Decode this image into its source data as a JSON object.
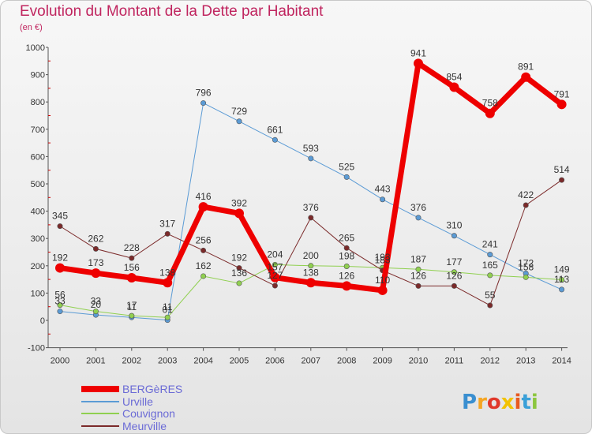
{
  "title": "Evolution du Montant de la Dette par Habitant",
  "subtitle": "(en €)",
  "logo": {
    "text": "Proxiti",
    "colors": [
      "#3a8fd0",
      "#f5a623",
      "#e0382a",
      "#f2c200",
      "#e85a20",
      "#3aa0d8",
      "#8cc63f"
    ]
  },
  "chart_data": {
    "type": "line",
    "title": "Evolution du Montant de la Dette par Habitant",
    "ylabel": "(en €)",
    "x": [
      2000,
      2001,
      2002,
      2003,
      2004,
      2005,
      2006,
      2007,
      2008,
      2009,
      2010,
      2011,
      2012,
      2013,
      2014
    ],
    "ylim": [
      -100,
      1000
    ],
    "yticks": [
      -100,
      0,
      100,
      200,
      300,
      400,
      500,
      600,
      700,
      800,
      900,
      1000
    ],
    "grid": false,
    "legend_position": "bottom-left",
    "series": [
      {
        "name": "BERGèRES",
        "color": "#ee0000",
        "width": 7,
        "values": [
          192,
          173,
          156,
          138,
          416,
          392,
          157,
          138,
          126,
          110,
          941,
          854,
          758,
          891,
          791
        ],
        "labels": [
          "192",
          "173",
          "156",
          "138",
          "416",
          "392",
          "157",
          "138",
          "126",
          "110",
          "941",
          "854",
          "758",
          "891",
          "791"
        ]
      },
      {
        "name": "Urville",
        "color": "#5b9bd5",
        "width": 1,
        "values": [
          33,
          20,
          11,
          1,
          796,
          729,
          661,
          593,
          525,
          443,
          376,
          310,
          241,
          172,
          113
        ],
        "labels": [
          "33",
          "20",
          "11",
          "01",
          "796",
          "729",
          "661",
          "593",
          "525",
          "443",
          "376",
          "310",
          "241",
          "172",
          "113"
        ]
      },
      {
        "name": "Couvignon",
        "color": "#90d050",
        "width": 1,
        "values": [
          56,
          33,
          17,
          11,
          162,
          136,
          204,
          200,
          198,
          193,
          187,
          177,
          165,
          158,
          149
        ],
        "labels": [
          "56",
          "33",
          "17",
          "11",
          "162",
          "136",
          "204",
          "200",
          "198",
          "193",
          "187",
          "177",
          "165",
          "158",
          "149"
        ]
      },
      {
        "name": "Meurville",
        "color": "#7b2a2a",
        "width": 1,
        "values": [
          345,
          262,
          228,
          317,
          256,
          192,
          127,
          376,
          265,
          183,
          126,
          126,
          55,
          422,
          514
        ],
        "labels": [
          "345",
          "262",
          "228",
          "317",
          "256",
          "192",
          "127",
          "376",
          "265",
          "183",
          "126",
          "126",
          "55",
          "422",
          "514"
        ]
      }
    ]
  }
}
